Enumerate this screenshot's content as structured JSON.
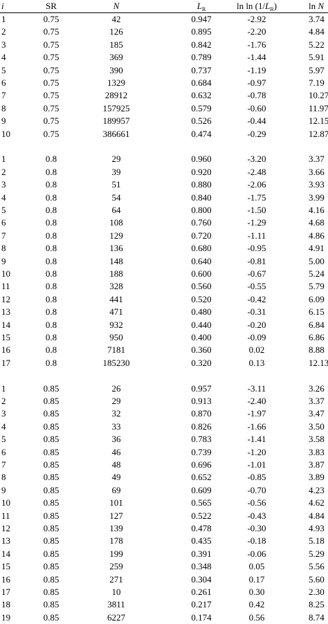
{
  "headers": {
    "i": "i",
    "sr": "SR",
    "n": "N",
    "lr_main": "L",
    "lr_sub": "R",
    "lnln_pre": "ln ln (1/",
    "lnln_l": "L",
    "lnln_sub": "R",
    "lnln_post": ")",
    "lnn_pre": "ln ",
    "lnn_n": "N"
  },
  "groups": [
    {
      "rows": [
        [
          "1",
          "0.75",
          "42",
          "0.947",
          "-2.92",
          "3.74"
        ],
        [
          "2",
          "0.75",
          "126",
          "0.895",
          "-2.20",
          "4.84"
        ],
        [
          "3",
          "0.75",
          "185",
          "0.842",
          "-1.76",
          "5.22"
        ],
        [
          "4",
          "0.75",
          "369",
          "0.789",
          "-1.44",
          "5.91"
        ],
        [
          "5",
          "0.75",
          "390",
          "0.737",
          "-1.19",
          "5.97"
        ],
        [
          "6",
          "0.75",
          "1329",
          "0.684",
          "-0.97",
          "7.19"
        ],
        [
          "7",
          "0.75",
          "28912",
          "0.632",
          "-0.78",
          "10.27"
        ],
        [
          "8",
          "0.75",
          "157925",
          "0.579",
          "-0.60",
          "11.97"
        ],
        [
          "9",
          "0.75",
          "189957",
          "0.526",
          "-0.44",
          "12.15"
        ],
        [
          "10",
          "0.75",
          "386661",
          "0.474",
          "-0.29",
          "12.87"
        ]
      ]
    },
    {
      "rows": [
        [
          "1",
          "0.8",
          "29",
          "0.960",
          "-3.20",
          "3.37"
        ],
        [
          "2",
          "0.8",
          "39",
          "0.920",
          "-2.48",
          "3.66"
        ],
        [
          "3",
          "0.8",
          "51",
          "0.880",
          "-2.06",
          "3.93"
        ],
        [
          "4",
          "0.8",
          "54",
          "0.840",
          "-1.75",
          "3.99"
        ],
        [
          "5",
          "0.8",
          "64",
          "0.800",
          "-1.50",
          "4.16"
        ],
        [
          "6",
          "0.8",
          "108",
          "0.760",
          "-1.29",
          "4.68"
        ],
        [
          "7",
          "0.8",
          "129",
          "0.720",
          "-1.11",
          "4.86"
        ],
        [
          "8",
          "0.8",
          "136",
          "0.680",
          "-0.95",
          "4.91"
        ],
        [
          "9",
          "0.8",
          "148",
          "0.640",
          "-0.81",
          "5.00"
        ],
        [
          "10",
          "0.8",
          "188",
          "0.600",
          "-0.67",
          "5.24"
        ],
        [
          "11",
          "0.8",
          "328",
          "0.560",
          "-0.55",
          "5.79"
        ],
        [
          "12",
          "0.8",
          "441",
          "0.520",
          "-0.42",
          "6.09"
        ],
        [
          "13",
          "0.8",
          "471",
          "0.480",
          "-0.31",
          "6.15"
        ],
        [
          "14",
          "0.8",
          "932",
          "0.440",
          "-0.20",
          "6.84"
        ],
        [
          "15",
          "0.8",
          "950",
          "0.400",
          "-0.09",
          "6.86"
        ],
        [
          "16",
          "0.8",
          "7181",
          "0.360",
          "0.02",
          "8.88"
        ],
        [
          "17",
          "0.8",
          "185230",
          "0.320",
          "0.13",
          "12.13"
        ]
      ]
    },
    {
      "rows": [
        [
          "1",
          "0.85",
          "26",
          "0.957",
          "-3.11",
          "3.26"
        ],
        [
          "2",
          "0.85",
          "29",
          "0.913",
          "-2.40",
          "3.37"
        ],
        [
          "3",
          "0.85",
          "32",
          "0.870",
          "-1.97",
          "3.47"
        ],
        [
          "4",
          "0.85",
          "33",
          "0.826",
          "-1.66",
          "3.50"
        ],
        [
          "5",
          "0.85",
          "36",
          "0.783",
          "-1.41",
          "3.58"
        ],
        [
          "6",
          "0.85",
          "46",
          "0.739",
          "-1.20",
          "3.83"
        ],
        [
          "7",
          "0.85",
          "48",
          "0.696",
          "-1.01",
          "3.87"
        ],
        [
          "8",
          "0.85",
          "49",
          "0.652",
          "-0.85",
          "3.89"
        ],
        [
          "9",
          "0.85",
          "69",
          "0.609",
          "-0.70",
          "4.23"
        ],
        [
          "10",
          "0.85",
          "101",
          "0.565",
          "-0.56",
          "4.62"
        ],
        [
          "11",
          "0.85",
          "127",
          "0.522",
          "-0.43",
          "4.84"
        ],
        [
          "12",
          "0.85",
          "139",
          "0.478",
          "-0.30",
          "4.93"
        ],
        [
          "13",
          "0.85",
          "178",
          "0.435",
          "-0.18",
          "5.18"
        ],
        [
          "14",
          "0.85",
          "199",
          "0.391",
          "-0.06",
          "5.29"
        ],
        [
          "15",
          "0.85",
          "259",
          "0.348",
          "0.05",
          "5.56"
        ],
        [
          "16",
          "0.85",
          "271",
          "0.304",
          "0.17",
          "5.60"
        ],
        [
          "17",
          "0.85",
          "10",
          "0.261",
          "0.30",
          "2.30"
        ],
        [
          "18",
          "0.85",
          "3811",
          "0.217",
          "0.42",
          "8.25"
        ],
        [
          "19",
          "0.85",
          "6227",
          "0.174",
          "0.56",
          "8.74"
        ]
      ]
    }
  ]
}
